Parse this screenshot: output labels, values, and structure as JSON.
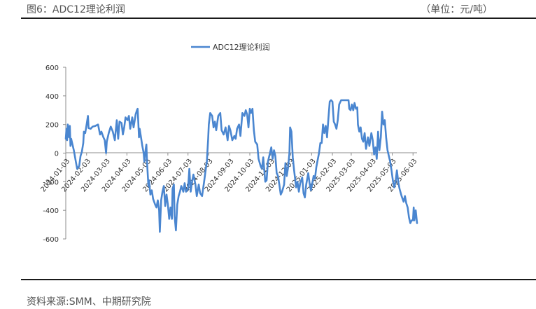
{
  "header": {
    "figure_title": "图6：ADC12理论利润",
    "unit": "（单位：元/吨）"
  },
  "footer": {
    "source": "资料来源:SMM、中期研究院"
  },
  "chart_data": {
    "type": "line",
    "title": "",
    "xlabel": "",
    "ylabel": "",
    "ylim": [
      -600,
      600
    ],
    "yticks": [
      -600,
      -400,
      -200,
      0,
      200,
      400,
      600
    ],
    "grid": false,
    "legend_placement": "top-center",
    "x_range": [
      "2024-01-03",
      "2025-06-09"
    ],
    "xtick_labels": [
      "2024-01-03",
      "2024-02-03",
      "2024-03-03",
      "2024-04-03",
      "2024-05-03",
      "2024-06-03",
      "2024-07-03",
      "2024-08-03",
      "2024-09-03",
      "2024-10-03",
      "2024-11-03",
      "2024-12-03",
      "2025-01-03",
      "2025-02-03",
      "2025-03-03",
      "2025-04-03",
      "2025-05-03",
      "2025-06-03"
    ],
    "series": [
      {
        "name": "ADC12理论利润",
        "color": "#4a86d0",
        "points": [
          [
            "2024-01-03",
            100
          ],
          [
            "2024-01-04",
            170
          ],
          [
            "2024-01-05",
            90
          ],
          [
            "2024-01-06",
            200
          ],
          [
            "2024-01-08",
            110
          ],
          [
            "2024-01-09",
            190
          ],
          [
            "2024-01-10",
            50
          ],
          [
            "2024-01-11",
            100
          ],
          [
            "2024-01-13",
            60
          ],
          [
            "2024-01-15",
            20
          ],
          [
            "2024-01-18",
            -60
          ],
          [
            "2024-01-20",
            -110
          ],
          [
            "2024-01-23",
            -90
          ],
          [
            "2024-01-25",
            -20
          ],
          [
            "2024-01-27",
            10
          ],
          [
            "2024-01-29",
            70
          ],
          [
            "2024-01-30",
            150
          ],
          [
            "2024-02-01",
            140
          ],
          [
            "2024-02-03",
            200
          ],
          [
            "2024-02-05",
            260
          ],
          [
            "2024-02-06",
            175
          ],
          [
            "2024-02-09",
            170
          ],
          [
            "2024-02-12",
            185
          ],
          [
            "2024-02-16",
            190
          ],
          [
            "2024-02-20",
            200
          ],
          [
            "2024-02-23",
            130
          ],
          [
            "2024-02-25",
            150
          ],
          [
            "2024-02-28",
            110
          ],
          [
            "2024-03-01",
            90
          ],
          [
            "2024-03-03",
            0
          ],
          [
            "2024-03-04",
            80
          ],
          [
            "2024-03-07",
            140
          ],
          [
            "2024-03-10",
            185
          ],
          [
            "2024-03-13",
            150
          ],
          [
            "2024-03-16",
            90
          ],
          [
            "2024-03-19",
            230
          ],
          [
            "2024-03-21",
            100
          ],
          [
            "2024-03-23",
            220
          ],
          [
            "2024-03-26",
            210
          ],
          [
            "2024-03-28",
            130
          ],
          [
            "2024-03-30",
            180
          ],
          [
            "2024-04-01",
            250
          ],
          [
            "2024-04-04",
            230
          ],
          [
            "2024-04-06",
            260
          ],
          [
            "2024-04-08",
            170
          ],
          [
            "2024-04-11",
            250
          ],
          [
            "2024-04-13",
            180
          ],
          [
            "2024-04-15",
            240
          ],
          [
            "2024-04-16",
            270
          ],
          [
            "2024-04-18",
            300
          ],
          [
            "2024-04-19",
            310
          ],
          [
            "2024-04-20",
            210
          ],
          [
            "2024-04-21",
            110
          ],
          [
            "2024-04-22",
            170
          ],
          [
            "2024-04-24",
            110
          ],
          [
            "2024-04-26",
            50
          ],
          [
            "2024-04-28",
            0
          ],
          [
            "2024-04-29",
            -60
          ],
          [
            "2024-05-01",
            30
          ],
          [
            "2024-05-02",
            60
          ],
          [
            "2024-05-03",
            -60
          ],
          [
            "2024-05-05",
            -230
          ],
          [
            "2024-05-06",
            -190
          ],
          [
            "2024-05-08",
            -290
          ],
          [
            "2024-05-10",
            -260
          ],
          [
            "2024-05-12",
            -320
          ],
          [
            "2024-05-15",
            -360
          ],
          [
            "2024-05-17",
            -380
          ],
          [
            "2024-05-19",
            -330
          ],
          [
            "2024-05-21",
            -400
          ],
          [
            "2024-05-22",
            -550
          ],
          [
            "2024-05-24",
            -330
          ],
          [
            "2024-05-26",
            -270
          ],
          [
            "2024-05-28",
            -230
          ],
          [
            "2024-05-30",
            -370
          ],
          [
            "2024-06-01",
            -290
          ],
          [
            "2024-06-03",
            -360
          ],
          [
            "2024-06-05",
            -460
          ],
          [
            "2024-06-07",
            -380
          ],
          [
            "2024-06-09",
            -460
          ],
          [
            "2024-06-10",
            -250
          ],
          [
            "2024-06-12",
            -220
          ],
          [
            "2024-06-13",
            -440
          ],
          [
            "2024-06-15",
            -540
          ],
          [
            "2024-06-17",
            -360
          ],
          [
            "2024-06-19",
            -300
          ],
          [
            "2024-06-21",
            -270
          ],
          [
            "2024-06-23",
            -230
          ],
          [
            "2024-06-26",
            -270
          ],
          [
            "2024-06-28",
            -210
          ],
          [
            "2024-06-30",
            -270
          ],
          [
            "2024-07-03",
            -250
          ],
          [
            "2024-07-05",
            -110
          ],
          [
            "2024-07-07",
            -270
          ],
          [
            "2024-07-09",
            -200
          ],
          [
            "2024-07-11",
            -150
          ],
          [
            "2024-07-14",
            -220
          ],
          [
            "2024-07-16",
            -300
          ],
          [
            "2024-07-19",
            -220
          ],
          [
            "2024-07-21",
            -280
          ],
          [
            "2024-07-24",
            -300
          ],
          [
            "2024-07-27",
            -200
          ],
          [
            "2024-07-29",
            -130
          ],
          [
            "2024-07-31",
            -60
          ],
          [
            "2024-08-02",
            100
          ],
          [
            "2024-08-03",
            200
          ],
          [
            "2024-08-05",
            280
          ],
          [
            "2024-08-08",
            260
          ],
          [
            "2024-08-10",
            180
          ],
          [
            "2024-08-12",
            220
          ],
          [
            "2024-08-14",
            160
          ],
          [
            "2024-08-17",
            260
          ],
          [
            "2024-08-20",
            280
          ],
          [
            "2024-08-22",
            160
          ],
          [
            "2024-08-25",
            130
          ],
          [
            "2024-08-28",
            180
          ],
          [
            "2024-08-31",
            90
          ],
          [
            "2024-09-02",
            190
          ],
          [
            "2024-09-04",
            160
          ],
          [
            "2024-09-07",
            90
          ],
          [
            "2024-09-10",
            120
          ],
          [
            "2024-09-12",
            100
          ],
          [
            "2024-09-14",
            170
          ],
          [
            "2024-09-17",
            200
          ],
          [
            "2024-09-19",
            120
          ],
          [
            "2024-09-22",
            280
          ],
          [
            "2024-09-25",
            260
          ],
          [
            "2024-09-27",
            300
          ],
          [
            "2024-09-29",
            270
          ],
          [
            "2024-10-01",
            180
          ],
          [
            "2024-10-03",
            310
          ],
          [
            "2024-10-05",
            280
          ],
          [
            "2024-10-07",
            310
          ],
          [
            "2024-10-09",
            160
          ],
          [
            "2024-10-11",
            80
          ],
          [
            "2024-10-14",
            60
          ],
          [
            "2024-10-16",
            -40
          ],
          [
            "2024-10-19",
            -90
          ],
          [
            "2024-10-21",
            -110
          ],
          [
            "2024-10-23",
            -30
          ],
          [
            "2024-10-26",
            -200
          ],
          [
            "2024-10-28",
            -190
          ],
          [
            "2024-10-30",
            -60
          ],
          [
            "2024-11-02",
            0
          ],
          [
            "2024-11-04",
            40
          ],
          [
            "2024-11-06",
            -40
          ],
          [
            "2024-11-08",
            20
          ],
          [
            "2024-11-10",
            -20
          ],
          [
            "2024-11-12",
            -140
          ],
          [
            "2024-11-14",
            -160
          ],
          [
            "2024-11-16",
            -220
          ],
          [
            "2024-11-18",
            -290
          ],
          [
            "2024-11-20",
            -270
          ],
          [
            "2024-11-23",
            -220
          ],
          [
            "2024-11-25",
            -70
          ],
          [
            "2024-11-27",
            -160
          ],
          [
            "2024-11-29",
            -100
          ],
          [
            "2024-12-01",
            0
          ],
          [
            "2024-12-02",
            180
          ],
          [
            "2024-12-04",
            150
          ],
          [
            "2024-12-06",
            -30
          ],
          [
            "2024-12-08",
            -120
          ],
          [
            "2024-12-11",
            -240
          ],
          [
            "2024-12-13",
            -200
          ],
          [
            "2024-12-15",
            -270
          ],
          [
            "2024-12-17",
            -210
          ],
          [
            "2024-12-20",
            -170
          ],
          [
            "2024-12-22",
            -280
          ],
          [
            "2024-12-24",
            -310
          ],
          [
            "2024-12-26",
            -220
          ],
          [
            "2024-12-29",
            -140
          ],
          [
            "2024-12-31",
            -210
          ],
          [
            "2025-01-02",
            -260
          ],
          [
            "2025-01-04",
            -210
          ],
          [
            "2025-01-06",
            -160
          ],
          [
            "2025-01-08",
            -180
          ],
          [
            "2025-01-10",
            -100
          ],
          [
            "2025-01-12",
            -50
          ],
          [
            "2025-01-14",
            0
          ],
          [
            "2025-01-16",
            70
          ],
          [
            "2025-01-18",
            70
          ],
          [
            "2025-01-20",
            200
          ],
          [
            "2025-01-22",
            140
          ],
          [
            "2025-01-24",
            190
          ],
          [
            "2025-01-26",
            110
          ],
          [
            "2025-01-28",
            240
          ],
          [
            "2025-01-30",
            360
          ],
          [
            "2025-02-01",
            370
          ],
          [
            "2025-02-03",
            360
          ],
          [
            "2025-02-05",
            220
          ],
          [
            "2025-02-07",
            200
          ],
          [
            "2025-02-09",
            170
          ],
          [
            "2025-02-11",
            230
          ],
          [
            "2025-02-13",
            340
          ],
          [
            "2025-02-16",
            370
          ],
          [
            "2025-02-20",
            370
          ],
          [
            "2025-02-24",
            370
          ],
          [
            "2025-02-27",
            370
          ],
          [
            "2025-02-28",
            310
          ],
          [
            "2025-03-02",
            300
          ],
          [
            "2025-03-04",
            340
          ],
          [
            "2025-03-06",
            300
          ],
          [
            "2025-03-08",
            350
          ],
          [
            "2025-03-10",
            310
          ],
          [
            "2025-03-12",
            320
          ],
          [
            "2025-03-13",
            200
          ],
          [
            "2025-03-15",
            150
          ],
          [
            "2025-03-17",
            180
          ],
          [
            "2025-03-19",
            100
          ],
          [
            "2025-03-21",
            80
          ],
          [
            "2025-03-23",
            140
          ],
          [
            "2025-03-25",
            30
          ],
          [
            "2025-03-28",
            110
          ],
          [
            "2025-03-30",
            50
          ],
          [
            "2025-04-02",
            140
          ],
          [
            "2025-04-04",
            90
          ],
          [
            "2025-04-06",
            -10
          ],
          [
            "2025-04-08",
            40
          ],
          [
            "2025-04-10",
            -40
          ],
          [
            "2025-04-12",
            150
          ],
          [
            "2025-04-14",
            20
          ],
          [
            "2025-04-16",
            110
          ],
          [
            "2025-04-18",
            290
          ],
          [
            "2025-04-20",
            200
          ],
          [
            "2025-04-22",
            230
          ],
          [
            "2025-04-24",
            110
          ],
          [
            "2025-04-26",
            20
          ],
          [
            "2025-04-28",
            -20
          ],
          [
            "2025-04-30",
            -60
          ],
          [
            "2025-05-02",
            -120
          ],
          [
            "2025-05-04",
            -190
          ],
          [
            "2025-05-06",
            -240
          ],
          [
            "2025-05-08",
            -200
          ],
          [
            "2025-05-10",
            -120
          ],
          [
            "2025-05-12",
            -200
          ],
          [
            "2025-05-14",
            -250
          ],
          [
            "2025-05-17",
            -300
          ],
          [
            "2025-05-20",
            -340
          ],
          [
            "2025-05-22",
            -300
          ],
          [
            "2025-05-24",
            -350
          ],
          [
            "2025-05-26",
            -380
          ],
          [
            "2025-05-28",
            -450
          ],
          [
            "2025-05-30",
            -490
          ],
          [
            "2025-06-01",
            -470
          ],
          [
            "2025-06-03",
            -470
          ],
          [
            "2025-06-04",
            -380
          ],
          [
            "2025-06-05",
            -470
          ],
          [
            "2025-06-07",
            -400
          ],
          [
            "2025-06-09",
            -490
          ]
        ]
      }
    ]
  }
}
